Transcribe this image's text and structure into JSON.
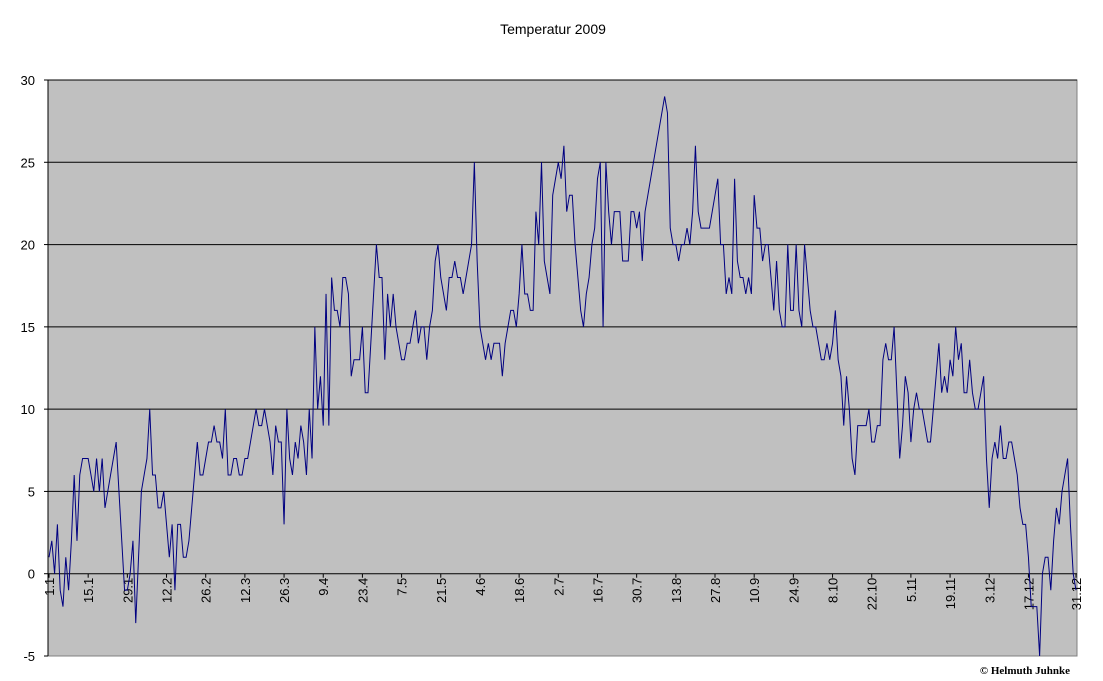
{
  "chart_data": {
    "type": "line",
    "title": "Temperatur 2009",
    "xlabel": "",
    "ylabel": "",
    "ylim": [
      -5,
      30
    ],
    "yticks": [
      "30",
      "25",
      "20",
      "15",
      "10",
      "5",
      "0",
      "-5"
    ],
    "grid": true,
    "legend": "none",
    "plot_bg_color": "#c0c0c0",
    "line_color": "#000080",
    "credit": "© Helmuth Juhnke",
    "x_labels": [
      "1.1",
      "15.1",
      "29.1",
      "12.2",
      "26.2",
      "12.3",
      "26.3",
      "9.4",
      "23.4",
      "7.5",
      "21.5",
      "4.6",
      "18.6",
      "2.7",
      "16.7",
      "30.7",
      "13.8",
      "27.8",
      "10.9",
      "24.9",
      "8.10",
      "22.10",
      "5.11",
      "19.11",
      "3.12",
      "17.12",
      "31.12"
    ],
    "series": [
      {
        "values": [
          1,
          2,
          0,
          3,
          -1,
          -2,
          1,
          -1,
          2,
          6,
          2,
          6,
          7,
          7,
          7,
          6,
          5,
          7,
          5,
          7,
          4,
          5,
          6,
          7,
          8,
          5,
          2,
          -1,
          -1,
          0,
          2,
          -3,
          1,
          5,
          6,
          7,
          10,
          6,
          6,
          4,
          4,
          5,
          3,
          1,
          3,
          -1,
          3,
          3,
          1,
          1,
          2,
          4,
          6,
          8,
          6,
          6,
          7,
          8,
          8,
          9,
          8,
          8,
          7,
          10,
          6,
          6,
          7,
          7,
          6,
          6,
          7,
          7,
          8,
          9,
          10,
          9,
          9,
          10,
          9,
          8,
          6,
          9,
          8,
          8,
          3,
          10,
          7,
          6,
          8,
          7,
          9,
          8,
          6,
          10,
          7,
          15,
          10,
          12,
          9,
          17,
          9,
          18,
          16,
          16,
          15,
          18,
          18,
          17,
          12,
          13,
          13,
          13,
          15,
          11,
          11,
          14,
          17,
          20,
          18,
          18,
          13,
          17,
          15,
          17,
          15,
          14,
          13,
          13,
          14,
          14,
          15,
          16,
          14,
          15,
          15,
          13,
          15,
          16,
          19,
          20,
          18,
          17,
          16,
          18,
          18,
          19,
          18,
          18,
          17,
          18,
          19,
          20,
          25,
          19,
          15,
          14,
          13,
          14,
          13,
          14,
          14,
          14,
          12,
          14,
          15,
          16,
          16,
          15,
          17,
          20,
          17,
          17,
          16,
          16,
          22,
          20,
          25,
          19,
          18,
          17,
          23,
          24,
          25,
          24,
          26,
          22,
          23,
          23,
          20,
          18,
          16,
          15,
          17,
          18,
          20,
          21,
          24,
          25,
          15,
          25,
          22,
          20,
          22,
          22,
          22,
          19,
          19,
          19,
          22,
          22,
          21,
          22,
          19,
          22,
          23,
          24,
          25,
          26,
          27,
          28,
          29,
          28,
          21,
          20,
          20,
          19,
          20,
          20,
          21,
          20,
          22,
          26,
          22,
          21,
          21,
          21,
          21,
          22,
          23,
          24,
          20,
          20,
          17,
          18,
          17,
          24,
          19,
          18,
          18,
          17,
          18,
          17,
          23,
          21,
          21,
          19,
          20,
          20,
          18,
          16,
          19,
          16,
          15,
          15,
          20,
          16,
          16,
          20,
          16,
          15,
          20,
          18,
          16,
          15,
          15,
          14,
          13,
          13,
          14,
          13,
          14,
          16,
          13,
          12,
          9,
          12,
          10,
          7,
          6,
          9,
          9,
          9,
          9,
          10,
          8,
          8,
          9,
          9,
          13,
          14,
          13,
          13,
          15,
          11,
          7,
          9,
          12,
          11,
          8,
          10,
          11,
          10,
          10,
          9,
          8,
          8,
          10,
          12,
          14,
          11,
          12,
          11,
          13,
          12,
          15,
          13,
          14,
          11,
          11,
          13,
          11,
          10,
          10,
          11,
          12,
          7,
          4,
          7,
          8,
          7,
          9,
          7,
          7,
          8,
          8,
          7,
          6,
          4,
          3,
          3,
          1,
          -2,
          -2,
          -2,
          -5,
          0,
          1,
          1,
          -1,
          2,
          4,
          3,
          5,
          6,
          7,
          3,
          0,
          -1
        ]
      }
    ]
  }
}
